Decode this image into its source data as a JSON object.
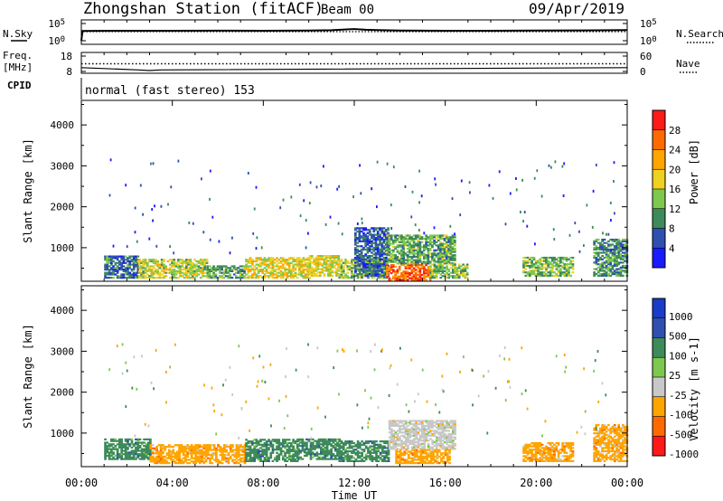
{
  "header": {
    "station": "Zhongshan Station (fitACF)",
    "beam": "Beam 00",
    "date": "09/Apr/2019"
  },
  "side_labels": {
    "nsky": "N.Sky",
    "freq_line1": "Freq.",
    "freq_line2": "[MHz]",
    "cpid": "CPID",
    "nsearch": "N.Search",
    "nave": "Nave"
  },
  "cpid_text": "normal (fast stereo) 153",
  "x_axis": {
    "label": "Time UT",
    "ticks": [
      "00:00",
      "04:00",
      "08:00",
      "12:00",
      "16:00",
      "20:00",
      "00:00"
    ]
  },
  "colors": {
    "power": [
      "#1a1aff",
      "#2f4fb0",
      "#3d8a5a",
      "#7ec850",
      "#f0d020",
      "#ffa500",
      "#ff6a00",
      "#ff1a1a"
    ],
    "velocity": [
      "#ff1a1a",
      "#ff6a00",
      "#ffa500",
      "#c8c8c8",
      "#7ec850",
      "#3d8a5a",
      "#2f4fb0",
      "#1a3cc8"
    ]
  },
  "chart_data": [
    {
      "type": "line",
      "panel": "noise",
      "left_ticks": [
        "10^5",
        "10^0"
      ],
      "right_ticks": [
        "10^5",
        "10^0"
      ],
      "series": [
        {
          "name": "N.Sky",
          "x": [
            0,
            0.05,
            2,
            4,
            6,
            8,
            10,
            11,
            12,
            12.5,
            13,
            14,
            16,
            18,
            20,
            22,
            24
          ],
          "values": [
            1,
            700,
            800,
            800,
            850,
            800,
            900,
            1100,
            2500,
            1500,
            1200,
            900,
            800,
            800,
            900,
            1000,
            1200
          ]
        }
      ],
      "xlim": [
        0,
        24
      ]
    },
    {
      "type": "scatter",
      "panel": "frequency",
      "left_ticks": [
        "18",
        "8"
      ],
      "right_ticks": [
        "60",
        "0"
      ],
      "series": [
        {
          "name": "Freq. [MHz]",
          "x": [
            0,
            2.5,
            3.0,
            3.5,
            24
          ],
          "values": [
            10.5,
            9.0,
            8.6,
            9.0,
            10.5
          ]
        },
        {
          "name": "Nave",
          "x": [
            0,
            24
          ],
          "values": [
            30,
            30
          ]
        }
      ],
      "xlim": [
        0,
        24
      ]
    },
    {
      "type": "heatmap",
      "panel": "power",
      "ylabel": "Slant Range [km]",
      "yticks": [
        1000,
        2000,
        3000,
        4000
      ],
      "ylim": [
        180,
        4600
      ],
      "xlim": [
        0,
        24
      ],
      "colorbar": {
        "label": "Power [dB]",
        "ticks": [
          4,
          8,
          12,
          16,
          20,
          24,
          28
        ],
        "range": [
          0,
          32
        ]
      },
      "regions": [
        {
          "t": [
            1.0,
            2.5
          ],
          "r": [
            250,
            800
          ],
          "value": 8
        },
        {
          "t": [
            2.5,
            5.5
          ],
          "r": [
            250,
            700
          ],
          "value": 16
        },
        {
          "t": [
            5.5,
            7.2
          ],
          "r": [
            250,
            550
          ],
          "value": 12
        },
        {
          "t": [
            7.2,
            10.0
          ],
          "r": [
            250,
            750
          ],
          "value": 18
        },
        {
          "t": [
            10.0,
            11.3
          ],
          "r": [
            300,
            800
          ],
          "value": 17
        },
        {
          "t": [
            11.3,
            13.4
          ],
          "r": [
            250,
            700
          ],
          "value": 14
        },
        {
          "t": [
            12.0,
            13.5
          ],
          "r": [
            300,
            1500
          ],
          "value": 7
        },
        {
          "t": [
            13.4,
            15.3
          ],
          "r": [
            200,
            600
          ],
          "value": 26
        },
        {
          "t": [
            13.4,
            16.4
          ],
          "r": [
            600,
            1300
          ],
          "value": 12
        },
        {
          "t": [
            15.3,
            17.0
          ],
          "r": [
            250,
            600
          ],
          "value": 14
        },
        {
          "t": [
            19.4,
            21.6
          ],
          "r": [
            300,
            750
          ],
          "value": 13
        },
        {
          "t": [
            22.5,
            24.0
          ],
          "r": [
            300,
            1200
          ],
          "value": 10
        }
      ]
    },
    {
      "type": "heatmap",
      "panel": "velocity",
      "ylabel": "Slant Range [km]",
      "yticks": [
        1000,
        2000,
        3000,
        4000
      ],
      "ylim": [
        180,
        4600
      ],
      "xlim": [
        0,
        24
      ],
      "colorbar": {
        "label": "Velocity [m s-1]",
        "ticks": [
          1000,
          500,
          100,
          25,
          -25,
          -100,
          -500,
          -1000
        ]
      },
      "regions": [
        {
          "t": [
            1.0,
            3.0
          ],
          "r": [
            350,
            850
          ],
          "value": 100
        },
        {
          "t": [
            3.0,
            7.2
          ],
          "r": [
            250,
            700
          ],
          "value": -300
        },
        {
          "t": [
            7.2,
            9.5
          ],
          "r": [
            300,
            850
          ],
          "value": 250
        },
        {
          "t": [
            9.5,
            11.3
          ],
          "r": [
            350,
            850
          ],
          "value": 150
        },
        {
          "t": [
            11.3,
            13.5
          ],
          "r": [
            300,
            800
          ],
          "value": 150
        },
        {
          "t": [
            13.5,
            16.4
          ],
          "r": [
            600,
            1300
          ],
          "value": 0
        },
        {
          "t": [
            13.8,
            16.2
          ],
          "r": [
            250,
            600
          ],
          "value": -150
        },
        {
          "t": [
            19.4,
            21.6
          ],
          "r": [
            300,
            750
          ],
          "value": -300
        },
        {
          "t": [
            22.5,
            24.0
          ],
          "r": [
            300,
            1200
          ],
          "value": -250
        }
      ]
    }
  ]
}
